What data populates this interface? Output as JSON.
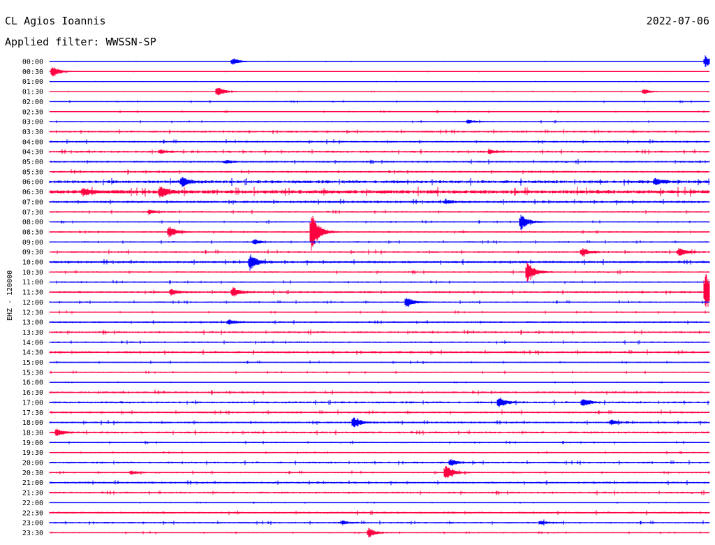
{
  "station": "CL Agios Ioannis",
  "date": "2022-07-06",
  "filter": "Applied filter: WWSSN-SP",
  "channel_label": "EHZ - 120000",
  "colors": {
    "even_rows": "#0000ff",
    "odd_rows": "#ff0040",
    "background": "#ffffff",
    "text": "#000000"
  },
  "chart_data": {
    "type": "helicorder",
    "title": "CL Agios Ioannis",
    "date": "2022-07-06",
    "ylabel": "EHZ - 120000",
    "row_interval_minutes": 30,
    "row_labels": [
      "00:00",
      "00:30",
      "01:00",
      "01:30",
      "02:00",
      "02:30",
      "03:00",
      "03:30",
      "04:00",
      "04:30",
      "05:00",
      "05:30",
      "06:00",
      "06:30",
      "07:00",
      "07:30",
      "08:00",
      "08:30",
      "09:00",
      "09:30",
      "10:00",
      "10:30",
      "11:00",
      "11:30",
      "12:00",
      "12:30",
      "13:00",
      "13:30",
      "14:00",
      "14:30",
      "15:00",
      "15:30",
      "16:00",
      "16:30",
      "17:00",
      "17:30",
      "18:00",
      "18:30",
      "19:00",
      "19:30",
      "20:00",
      "20:30",
      "21:00",
      "21:30",
      "22:00",
      "22:30",
      "23:00",
      "23:30"
    ],
    "row_noise": [
      0.3,
      0.3,
      0.3,
      0.4,
      0.6,
      0.6,
      0.7,
      1.0,
      1.0,
      1.1,
      1.0,
      1.0,
      1.6,
      2.0,
      1.2,
      0.9,
      0.7,
      0.8,
      0.8,
      1.0,
      1.2,
      0.9,
      0.8,
      1.0,
      0.8,
      0.7,
      0.9,
      1.0,
      0.9,
      1.1,
      0.7,
      0.7,
      0.4,
      1.0,
      1.1,
      1.0,
      1.0,
      1.1,
      0.7,
      0.7,
      1.0,
      0.8,
      1.0,
      1.0,
      0.4,
      1.0,
      0.9,
      0.6
    ],
    "events": [
      {
        "row": 0,
        "minute": 8.3,
        "amp": 6
      },
      {
        "row": 0,
        "minute": 29.8,
        "amp": 9
      },
      {
        "row": 1,
        "minute": 0.1,
        "amp": 10
      },
      {
        "row": 3,
        "minute": 7.6,
        "amp": 8
      },
      {
        "row": 3,
        "minute": 27,
        "amp": 4
      },
      {
        "row": 6,
        "minute": 19,
        "amp": 3
      },
      {
        "row": 9,
        "minute": 5,
        "amp": 3
      },
      {
        "row": 9,
        "minute": 20,
        "amp": 3
      },
      {
        "row": 10,
        "minute": 8,
        "amp": 2
      },
      {
        "row": 12,
        "minute": 6,
        "amp": 7
      },
      {
        "row": 12,
        "minute": 27.5,
        "amp": 5
      },
      {
        "row": 13,
        "minute": 1.5,
        "amp": 6
      },
      {
        "row": 13,
        "minute": 5,
        "amp": 9
      },
      {
        "row": 14,
        "minute": 18,
        "amp": 3
      },
      {
        "row": 15,
        "minute": 4.5,
        "amp": 3
      },
      {
        "row": 16,
        "minute": 21.4,
        "amp": 13
      },
      {
        "row": 17,
        "minute": 5.4,
        "amp": 9
      },
      {
        "row": 17,
        "minute": 11.9,
        "amp": 30
      },
      {
        "row": 18,
        "minute": 9.3,
        "amp": 4
      },
      {
        "row": 19,
        "minute": 24.2,
        "amp": 6
      },
      {
        "row": 19,
        "minute": 28.6,
        "amp": 6
      },
      {
        "row": 20,
        "minute": 9.1,
        "amp": 12
      },
      {
        "row": 21,
        "minute": 21.7,
        "amp": 15
      },
      {
        "row": 23,
        "minute": 5.5,
        "amp": 5
      },
      {
        "row": 23,
        "minute": 8.3,
        "amp": 8
      },
      {
        "row": 23,
        "minute": 29.8,
        "amp": 32
      },
      {
        "row": 24,
        "minute": 16.2,
        "amp": 8
      },
      {
        "row": 26,
        "minute": 8.1,
        "amp": 4
      },
      {
        "row": 34,
        "minute": 20.4,
        "amp": 8
      },
      {
        "row": 34,
        "minute": 24.2,
        "amp": 6
      },
      {
        "row": 36,
        "minute": 13.8,
        "amp": 8
      },
      {
        "row": 36,
        "minute": 25.5,
        "amp": 4
      },
      {
        "row": 37,
        "minute": 0.3,
        "amp": 5
      },
      {
        "row": 40,
        "minute": 18.2,
        "amp": 5
      },
      {
        "row": 41,
        "minute": 18,
        "amp": 11
      },
      {
        "row": 41,
        "minute": 3.7,
        "amp": 3
      },
      {
        "row": 46,
        "minute": 13.3,
        "amp": 3
      },
      {
        "row": 46,
        "minute": 22.3,
        "amp": 3
      },
      {
        "row": 47,
        "minute": 14.5,
        "amp": 7
      }
    ]
  }
}
